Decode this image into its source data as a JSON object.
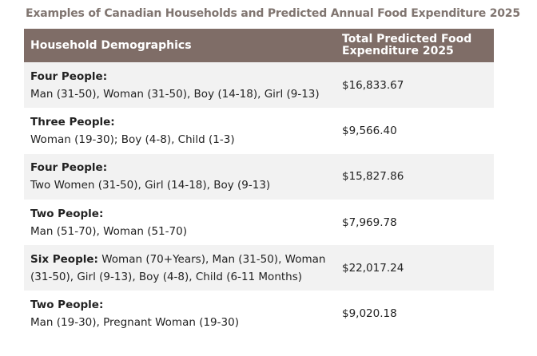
{
  "title": "Examples of Canadian Households and Predicted Annual Food Expenditure 2025",
  "table": {
    "header": [
      "Household Demographics",
      "Total Predicted Food Expenditure 2025"
    ],
    "rows": [
      {
        "label": "Four People:",
        "members": "Man (31-50), Woman (31-50), Boy (14-18), Girl (9-13)",
        "cost": "$16,833.67"
      },
      {
        "label": "Three People:",
        "members": "Woman (19-30); Boy (4-8), Child (1-3)",
        "cost": "$9,566.40"
      },
      {
        "label": "Four People:",
        "members": "Two Women (31-50), Girl (14-18), Boy (9-13)",
        "cost": "$15,827.86"
      },
      {
        "label": "Two People:",
        "members": "Man (51-70), Woman (51-70)",
        "cost": "$7,969.78"
      },
      {
        "label": "Six People:",
        "members": "Woman (70+Years), Man (31-50), Woman (31-50), Girl (9-13), Boy (4-8), Child (6-11 Months)",
        "cost": "$22,017.24"
      },
      {
        "label": "Two People:",
        "members": "Man (19-30), Pregnant Woman (19-30)",
        "cost": "$9,020.18"
      }
    ]
  }
}
